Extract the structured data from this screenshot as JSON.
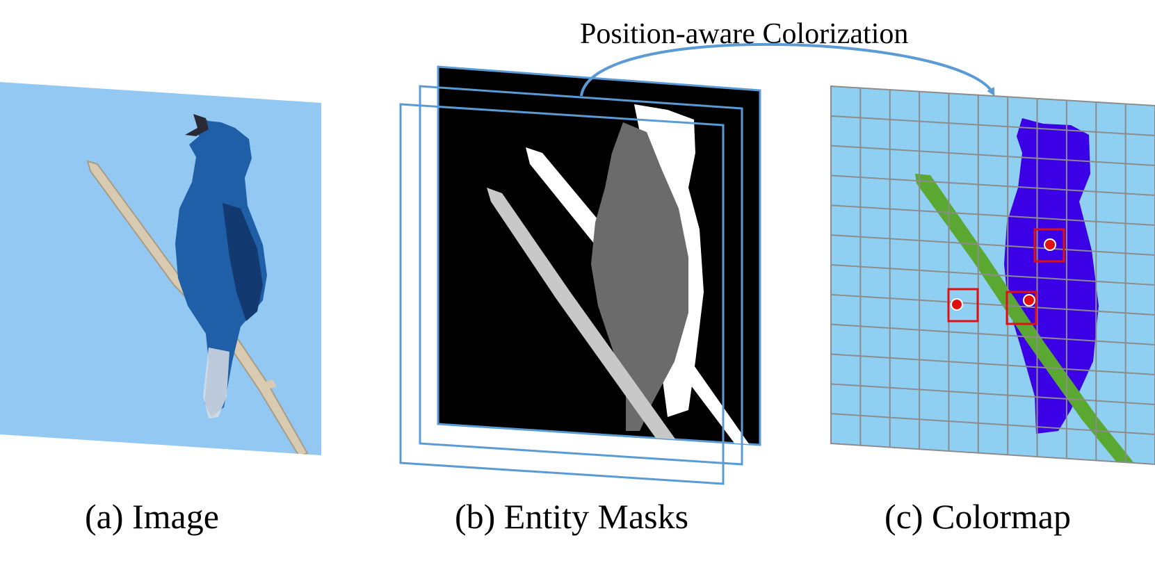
{
  "top_label": "Position-aware Colorization",
  "panels": [
    {
      "id": "a",
      "caption": "(a) Image"
    },
    {
      "id": "b",
      "caption": "(b) Entity Masks"
    },
    {
      "id": "c",
      "caption": "(c) Colormap"
    }
  ],
  "colors": {
    "sky": "#93c8f3",
    "bird_blue": "#1f5fa8",
    "bird_dark": "#123a70",
    "branch_photo": "#d8cbb2",
    "mask_bg": "#000000",
    "mask_bird": "#6b6b6b",
    "mask_branch_white": "#ffffff",
    "mask_branch_gray": "#c8c8c8",
    "frame_outline": "#5b9bd5",
    "colormap_bg": "#8fd0f2",
    "grid_line": "#8c8c8c",
    "bird_purple": "#3b00e6",
    "branch_green": "#5aa832",
    "marker_box": "#e01010",
    "marker_dot": "#e01010",
    "arrow": "#5b9bd5"
  },
  "colormap_grid": {
    "columns": 11,
    "rows": 12
  },
  "markers": 3
}
